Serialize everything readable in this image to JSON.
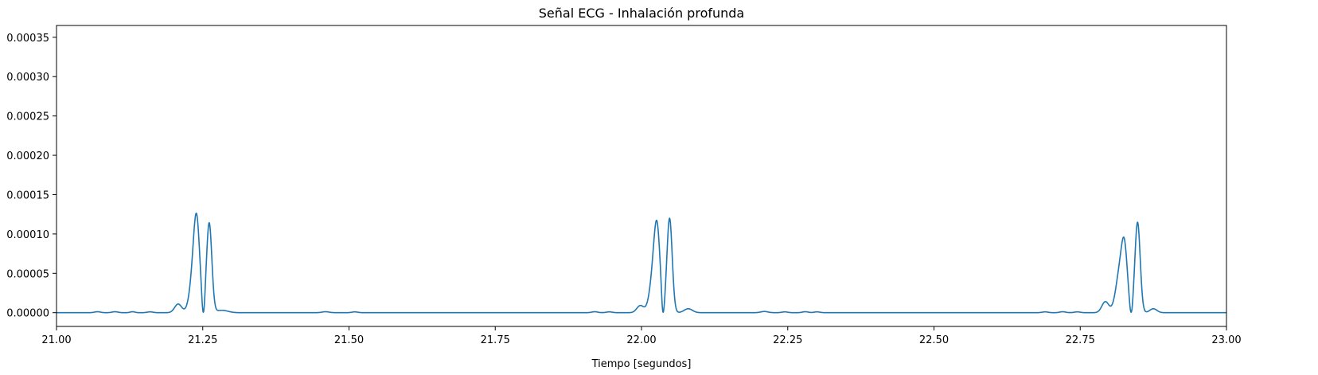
{
  "chart_data": {
    "type": "line",
    "title": "Señal ECG - Inhalación profunda",
    "xlabel": "Tiempo [segundos]",
    "ylabel": "",
    "xlim": [
      21.0,
      23.0
    ],
    "ylim": [
      -1.75e-05,
      0.000365
    ],
    "grid": false,
    "x_ticks": [
      21.0,
      21.25,
      21.5,
      21.75,
      22.0,
      22.25,
      22.5,
      22.75,
      23.0
    ],
    "x_tick_labels": [
      "21.00",
      "21.25",
      "21.50",
      "21.75",
      "22.00",
      "22.25",
      "22.50",
      "22.75",
      "23.00"
    ],
    "y_ticks": [
      0.0,
      5e-05,
      0.0001,
      0.00015,
      0.0002,
      0.00025,
      0.0003,
      0.00035
    ],
    "y_tick_labels": [
      "0.00000",
      "0.00005",
      "0.00010",
      "0.00015",
      "0.00020",
      "0.00025",
      "0.00030",
      "0.00035"
    ],
    "series": [
      {
        "color": "#1f77b4",
        "peaks": [
          {
            "x": 21.208,
            "y": 1.1e-05,
            "w": 0.006
          },
          {
            "x": 21.236,
            "y": 5.8e-05,
            "w": 0.007
          },
          {
            "x": 21.24,
            "y": 7.5e-05,
            "w": 0.005
          },
          {
            "x": 21.261,
            "y": 0.000114,
            "w": 0.0045
          },
          {
            "x": 21.283,
            "y": 3e-06,
            "w": 0.01
          },
          {
            "x": 21.998,
            "y": 9e-06,
            "w": 0.006
          },
          {
            "x": 22.022,
            "y": 5.5e-05,
            "w": 0.007
          },
          {
            "x": 22.027,
            "y": 7.2e-05,
            "w": 0.005
          },
          {
            "x": 22.048,
            "y": 0.00012,
            "w": 0.0045
          },
          {
            "x": 22.08,
            "y": 5e-06,
            "w": 0.007
          },
          {
            "x": 22.793,
            "y": 1.4e-05,
            "w": 0.006
          },
          {
            "x": 22.818,
            "y": 5.2e-05,
            "w": 0.007
          },
          {
            "x": 22.826,
            "y": 6.5e-05,
            "w": 0.005
          },
          {
            "x": 22.848,
            "y": 0.000115,
            "w": 0.0045
          },
          {
            "x": 22.875,
            "y": 5e-06,
            "w": 0.006
          },
          {
            "x": 21.07,
            "y": 1.2e-06,
            "w": 0.005
          },
          {
            "x": 21.1,
            "y": 1.2e-06,
            "w": 0.005
          },
          {
            "x": 21.13,
            "y": 1.2e-06,
            "w": 0.004
          },
          {
            "x": 21.16,
            "y": 1e-06,
            "w": 0.005
          },
          {
            "x": 21.46,
            "y": 1.2e-06,
            "w": 0.006
          },
          {
            "x": 21.51,
            "y": 1e-06,
            "w": 0.005
          },
          {
            "x": 21.92,
            "y": 1.2e-06,
            "w": 0.005
          },
          {
            "x": 21.945,
            "y": 1e-06,
            "w": 0.005
          },
          {
            "x": 22.21,
            "y": 1.5e-06,
            "w": 0.006
          },
          {
            "x": 22.245,
            "y": 1e-06,
            "w": 0.005
          },
          {
            "x": 22.28,
            "y": 1.2e-06,
            "w": 0.005
          },
          {
            "x": 22.3,
            "y": 1e-06,
            "w": 0.005
          },
          {
            "x": 22.69,
            "y": 1e-06,
            "w": 0.005
          },
          {
            "x": 22.72,
            "y": 1.2e-06,
            "w": 0.005
          },
          {
            "x": 22.745,
            "y": 1e-06,
            "w": 0.005
          }
        ],
        "dips": [
          {
            "x": 21.251,
            "y": 5e-07,
            "w": 0.0018
          },
          {
            "x": 22.037,
            "y": 5e-07,
            "w": 0.0018
          },
          {
            "x": 22.837,
            "y": 5e-07,
            "w": 0.0018
          }
        ]
      }
    ]
  }
}
